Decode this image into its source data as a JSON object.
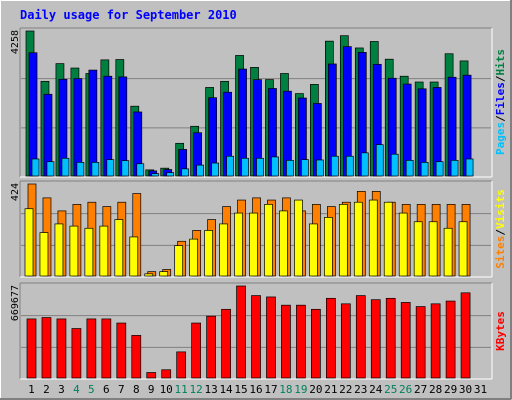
{
  "chart_data": {
    "type": "bar",
    "title": "Daily usage for September 2010",
    "colors": {
      "background": "#C0C0C0",
      "title": "#0000FF",
      "hits": "#008040",
      "files": "#0000FF",
      "pages": "#00C0FF",
      "visits": "#FFFF00",
      "sites": "#FF8000",
      "kbytes": "#FF0000",
      "weekend_label": "#00805C",
      "weekday_label": "#000000"
    },
    "categories": [
      "1",
      "2",
      "3",
      "4",
      "5",
      "6",
      "7",
      "8",
      "9",
      "10",
      "11",
      "12",
      "13",
      "14",
      "15",
      "16",
      "17",
      "18",
      "19",
      "20",
      "21",
      "22",
      "23",
      "24",
      "25",
      "26",
      "27",
      "28",
      "29",
      "30",
      "31"
    ],
    "weekend_days": [
      "4",
      "5",
      "11",
      "12",
      "18",
      "19",
      "25",
      "26"
    ],
    "panels": [
      {
        "id": "hits-files-pages",
        "ymax_label": "4258",
        "ymax": 4258,
        "legend": [
          "Pages",
          "/",
          "Files",
          "/",
          "Hits"
        ],
        "legend_colors": [
          "#00C0FF",
          "#000000",
          "#0000FF",
          "#000000",
          "#008040"
        ],
        "series": [
          {
            "name": "Hits",
            "values": [
              4258,
              2780,
              3300,
              3170,
              3010,
              3410,
              3420,
              2050,
              180,
              230,
              960,
              1460,
              2600,
              2780,
              3540,
              3190,
              2830,
              3010,
              2420,
              2690,
              3960,
              4120,
              3760,
              3950,
              3430,
              2930,
              2760,
              2760,
              3590,
              3380
            ]
          },
          {
            "name": "Files",
            "values": [
              3620,
              2400,
              2840,
              2860,
              3110,
              2930,
              2910,
              1880,
              150,
              190,
              780,
              1270,
              2300,
              2460,
              3140,
              2830,
              2570,
              2490,
              2290,
              2130,
              3290,
              3800,
              3630,
              3280,
              2870,
              2700,
              2560,
              2600,
              2900,
              2960
            ]
          },
          {
            "name": "Pages",
            "values": [
              500,
              420,
              520,
              400,
              400,
              480,
              450,
              360,
              70,
              100,
              210,
              320,
              380,
              580,
              520,
              520,
              560,
              460,
              480,
              470,
              580,
              580,
              680,
              920,
              640,
              460,
              400,
              420,
              460,
              500
            ]
          }
        ]
      },
      {
        "id": "sites-visits",
        "ymax_label": "424",
        "ymax": 424,
        "legend": [
          "Sites",
          "/",
          "Visits"
        ],
        "legend_colors": [
          "#FF8000",
          "#000000",
          "#FFFF00"
        ],
        "series": [
          {
            "name": "Sites",
            "values": [
              424,
              360,
              300,
              330,
              340,
              320,
              340,
              380,
              20,
              30,
              160,
              210,
              260,
              320,
              350,
              360,
              350,
              360,
              300,
              330,
              320,
              340,
              390,
              390,
              340,
              330,
              330,
              330,
              330,
              330
            ]
          },
          {
            "name": "Visits",
            "values": [
              310,
              200,
              240,
              230,
              220,
              230,
              260,
              180,
              10,
              20,
              140,
              170,
              210,
              240,
              290,
              290,
              330,
              300,
              350,
              240,
              270,
              330,
              340,
              350,
              340,
              290,
              250,
              250,
              220,
              250
            ]
          }
        ]
      },
      {
        "id": "kbytes",
        "ymax_label": "669677",
        "ymax": 669677,
        "legend": [
          "KBytes"
        ],
        "legend_colors": [
          "#FF0000"
        ],
        "series": [
          {
            "name": "KBytes",
            "values": [
              430000,
              440000,
              430000,
              360000,
              430000,
              430000,
              400000,
              310000,
              40000,
              60000,
              190000,
              400000,
              450000,
              500000,
              669677,
              600000,
              590000,
              530000,
              530000,
              500000,
              580000,
              540000,
              600000,
              570000,
              580000,
              550000,
              520000,
              540000,
              560000,
              620000
            ]
          }
        ]
      }
    ],
    "grid": true
  }
}
